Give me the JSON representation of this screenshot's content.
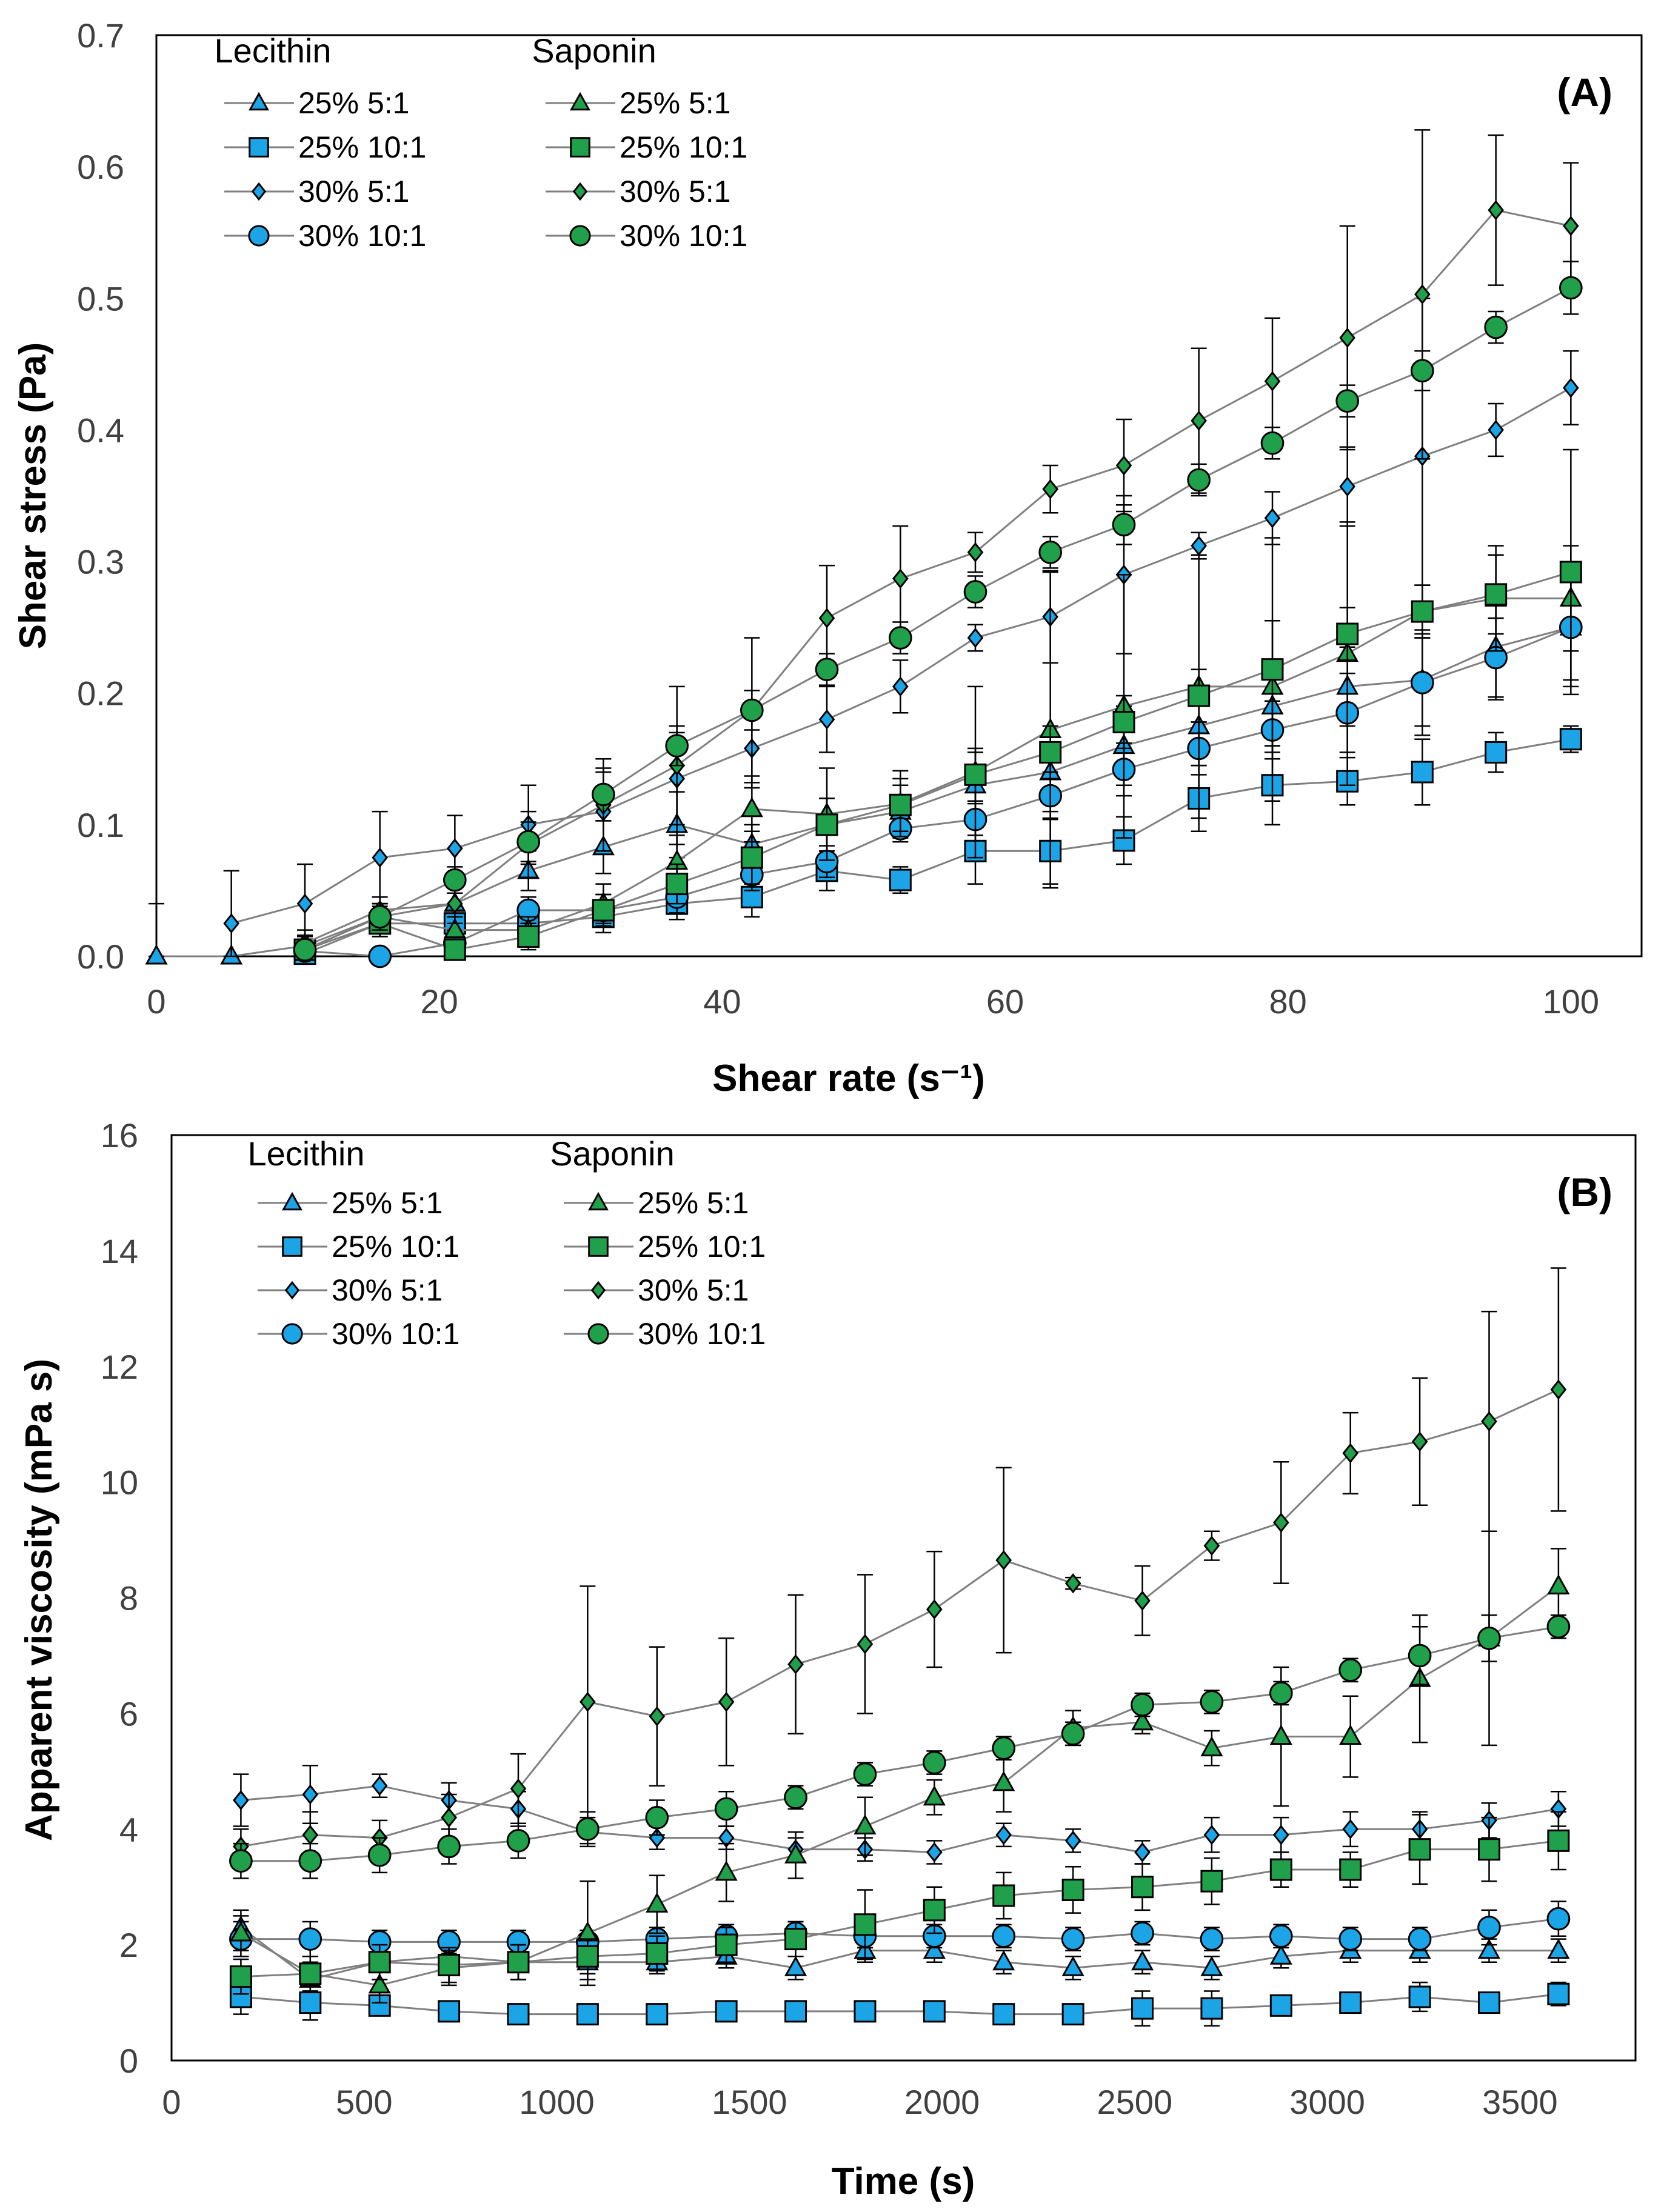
{
  "colors": {
    "lecithin": "#1ca5e6",
    "saponin": "#21a04c",
    "line": "#7f7f7f",
    "frame": "#000000"
  },
  "chart_data": [
    {
      "type": "line",
      "panel_label": "(A)",
      "xlabel": "Shear rate (s⁻¹)",
      "ylabel": "Shear stress (Pa)",
      "xlim": [
        0,
        105
      ],
      "ylim": [
        0,
        0.7
      ],
      "xticks": [
        0,
        20,
        40,
        60,
        80,
        100
      ],
      "xtick_labels": [
        "0",
        "20",
        "40",
        "60",
        "80",
        "100"
      ],
      "yticks": [
        0,
        0.1,
        0.2,
        0.3,
        0.4,
        0.5,
        0.6,
        0.7
      ],
      "ytick_labels": [
        "0.0",
        "0.1",
        "0.2",
        "0.3",
        "0.4",
        "0.5",
        "0.6",
        "0.7"
      ],
      "legend": {
        "placement": "top-left",
        "groups": [
          {
            "title": "Lecithin",
            "entries": [
              "25% 5:1",
              "25% 10:1",
              "30% 5:1",
              "30% 10:1"
            ]
          },
          {
            "title": "Saponin",
            "entries": [
              "25% 5:1",
              "25% 10:1",
              "30% 5:1",
              "30% 10:1"
            ]
          }
        ]
      },
      "x": [
        0,
        5.3,
        10.5,
        15.8,
        21.1,
        26.3,
        31.6,
        36.8,
        42.1,
        47.4,
        52.6,
        57.9,
        63.2,
        68.4,
        73.7,
        78.9,
        84.2,
        89.5,
        94.7,
        100
      ],
      "series": [
        {
          "name": "Lecithin 25% 5:1",
          "group": "lecithin",
          "marker": "triangle",
          "values": [
            0.0,
            0.0,
            0.008,
            0.03,
            0.04,
            0.065,
            0.083,
            0.1,
            0.085,
            0.1,
            0.11,
            0.13,
            0.14,
            0.16,
            0.175,
            0.19,
            0.205,
            0.21,
            0.235,
            0.25
          ],
          "errors": [
            0.04,
            0,
            0.008,
            0.008,
            0.008,
            0.015,
            0.02,
            0.025,
            0.015,
            0.02,
            0.02,
            0.025,
            0.03,
            0.03,
            0.03,
            0.03,
            0.03,
            0.035,
            0.04,
            0.045
          ]
        },
        {
          "name": "Lecithin 25% 10:1",
          "group": "lecithin",
          "marker": "square",
          "values": [
            null,
            null,
            0.002,
            0.025,
            0.025,
            0.025,
            0.03,
            0.04,
            0.045,
            0.065,
            0.058,
            0.08,
            0.08,
            0.088,
            0.12,
            0.13,
            0.133,
            0.14,
            0.155,
            0.165
          ],
          "errors": [
            0,
            0,
            0.005,
            0.01,
            0.01,
            0.01,
            0.012,
            0.012,
            0.015,
            0.015,
            0.01,
            0.025,
            0.025,
            0.018,
            0.025,
            0.03,
            0.018,
            0.025,
            0.015,
            0.01
          ]
        },
        {
          "name": "Lecithin 30% 5:1",
          "group": "lecithin",
          "marker": "diamond",
          "values": [
            null,
            0.025,
            0.04,
            0.075,
            0.082,
            0.1,
            0.11,
            0.135,
            0.158,
            0.18,
            0.205,
            0.242,
            0.258,
            0.29,
            0.312,
            0.333,
            0.357,
            0.38,
            0.4,
            0.432
          ],
          "errors": [
            0,
            0.04,
            0.03,
            0.035,
            0.025,
            0.03,
            0.03,
            0.035,
            0.03,
            0.025,
            0.02,
            0.01,
            0.035,
            0.06,
            0.01,
            0.02,
            0.03,
            0.12,
            0.02,
            0.028
          ]
        },
        {
          "name": "Lecithin 30% 10:1",
          "group": "lecithin",
          "marker": "circle",
          "values": [
            null,
            null,
            0.004,
            0.0,
            0.01,
            0.035,
            0.035,
            0.045,
            0.062,
            0.072,
            0.097,
            0.104,
            0.122,
            0.142,
            0.158,
            0.172,
            0.185,
            0.208,
            0.227,
            0.25
          ],
          "errors": [
            0,
            0,
            0.005,
            0,
            0.01,
            0.01,
            0.012,
            0.012,
            0.012,
            0.012,
            0.01,
            0.012,
            0.018,
            0.02,
            0.02,
            0.022,
            0.03,
            0.04,
            0.03,
            0.04
          ]
        },
        {
          "name": "Saponin 25% 5:1",
          "group": "saponin",
          "marker": "triangle",
          "values": [
            null,
            null,
            0.005,
            0.03,
            0.02,
            0.02,
            0.04,
            0.072,
            0.112,
            0.108,
            0.116,
            0.14,
            0.172,
            0.19,
            0.205,
            0.205,
            0.23,
            0.262,
            0.272,
            0.272
          ],
          "errors": [
            0,
            0,
            0.008,
            0.01,
            0.01,
            0.01,
            0.015,
            0.02,
            0.025,
            0.035,
            0.025,
            0.065,
            0.12,
            0.1,
            0.1,
            0.05,
            0.1,
            0.02,
            0.04,
            0.04
          ]
        },
        {
          "name": "Saponin 25% 10:1",
          "group": "saponin",
          "marker": "square",
          "values": [
            null,
            null,
            0.005,
            0.025,
            0.005,
            0.015,
            0.035,
            0.055,
            0.075,
            0.1,
            0.115,
            0.138,
            0.155,
            0.178,
            0.198,
            0.218,
            0.245,
            0.262,
            0.275,
            0.292
          ],
          "errors": [
            0,
            0,
            0.005,
            0.01,
            0.008,
            0.01,
            0.012,
            0.015,
            0.02,
            0.02,
            0.02,
            0.02,
            0.02,
            0.02,
            0.02,
            0.1,
            0.02,
            0.02,
            0.03,
            0.093
          ]
        },
        {
          "name": "Saponin 30% 5:1",
          "group": "saponin",
          "marker": "diamond",
          "values": [
            null,
            null,
            0.01,
            0.035,
            0.04,
            0.085,
            0.115,
            0.145,
            0.187,
            0.257,
            0.287,
            0.307,
            0.355,
            0.373,
            0.407,
            0.437,
            0.47,
            0.503,
            0.567,
            0.555
          ],
          "errors": [
            0,
            0,
            0.01,
            0.01,
            0.015,
            0.025,
            0.035,
            0.06,
            0.055,
            0.04,
            0.04,
            0.015,
            0.018,
            0.035,
            0.055,
            0.048,
            0.085,
            0.125,
            0.057,
            0.048
          ]
        },
        {
          "name": "Saponin 30% 10:1",
          "group": "saponin",
          "marker": "circle",
          "values": [
            null,
            null,
            0.005,
            0.03,
            0.058,
            0.087,
            0.123,
            0.16,
            0.187,
            0.218,
            0.242,
            0.277,
            0.307,
            0.328,
            0.362,
            0.39,
            0.422,
            0.445,
            0.478,
            0.508
          ],
          "errors": [
            0,
            0,
            0.01,
            0.01,
            0.01,
            0.015,
            0.02,
            0.015,
            0.015,
            0.012,
            0.012,
            0.012,
            0.012,
            0.015,
            0.012,
            0.012,
            0.012,
            0.015,
            0.012,
            0.02
          ]
        }
      ]
    },
    {
      "type": "line",
      "panel_label": "(B)",
      "xlabel": "Time (s)",
      "ylabel": "Apparent viscosity  (mPa s)",
      "xlim": [
        0,
        3800
      ],
      "ylim": [
        0,
        16
      ],
      "xticks": [
        0,
        500,
        1000,
        1500,
        2000,
        2500,
        3000,
        3500
      ],
      "xtick_labels": [
        "0",
        "500",
        "1000",
        "1500",
        "2000",
        "2500",
        "3000",
        "3500"
      ],
      "yticks": [
        0,
        2,
        4,
        6,
        8,
        10,
        12,
        14,
        16
      ],
      "ytick_labels": [
        "0",
        "2",
        "4",
        "6",
        "8",
        "10",
        "12",
        "14",
        "16"
      ],
      "legend": {
        "placement": "top-left",
        "groups": [
          {
            "title": "Lecithin",
            "entries": [
              "25% 5:1",
              "25% 10:1",
              "30% 5:1",
              "30% 10:1"
            ]
          },
          {
            "title": "Saponin",
            "entries": [
              "25% 5:1",
              "25% 10:1",
              "30% 5:1",
              "30% 10:1"
            ]
          }
        ]
      },
      "x": [
        180,
        360,
        540,
        720,
        900,
        1080,
        1260,
        1440,
        1620,
        1800,
        1980,
        2160,
        2340,
        2520,
        2700,
        2880,
        3060,
        3240,
        3420,
        3600
      ],
      "series": [
        {
          "name": "Lecithin 25% 5:1",
          "group": "lecithin",
          "marker": "triangle",
          "values": [
            2.3,
            1.4,
            1.7,
            1.8,
            1.7,
            1.7,
            1.7,
            1.8,
            1.6,
            1.9,
            1.9,
            1.7,
            1.6,
            1.7,
            1.6,
            1.8,
            1.9,
            1.9,
            1.9,
            1.9
          ],
          "errors": [
            0.3,
            0.3,
            0.3,
            0.3,
            0.3,
            0.3,
            0.2,
            0.2,
            0.2,
            0.2,
            0.2,
            0.2,
            0.2,
            0.2,
            0.2,
            0.2,
            0.2,
            0.2,
            0.2,
            0.2
          ]
        },
        {
          "name": "Lecithin 25% 10:1",
          "group": "lecithin",
          "marker": "square",
          "values": [
            1.1,
            1.0,
            0.95,
            0.85,
            0.8,
            0.8,
            0.8,
            0.85,
            0.85,
            0.85,
            0.85,
            0.8,
            0.8,
            0.9,
            0.9,
            0.95,
            1.0,
            1.1,
            1.0,
            1.15
          ],
          "errors": [
            0.3,
            0.3,
            0.15,
            0.1,
            0.1,
            0.1,
            0.1,
            0.1,
            0.1,
            0.1,
            0.1,
            0.1,
            0.1,
            0.3,
            0.3,
            0.1,
            0.1,
            0.25,
            0.1,
            0.2
          ]
        },
        {
          "name": "Lecithin 30% 5:1",
          "group": "lecithin",
          "marker": "diamond",
          "values": [
            4.5,
            4.6,
            4.75,
            4.5,
            4.35,
            3.95,
            3.85,
            3.85,
            3.65,
            3.65,
            3.6,
            3.9,
            3.8,
            3.6,
            3.9,
            3.9,
            4.0,
            4.0,
            4.15,
            4.35
          ],
          "errors": [
            0.45,
            0.5,
            0.2,
            0.3,
            0.3,
            0.2,
            0.2,
            0.2,
            0.2,
            0.2,
            0.2,
            0.2,
            0.2,
            0.2,
            0.3,
            0.3,
            0.3,
            0.3,
            0.3,
            0.3
          ]
        },
        {
          "name": "Lecithin 30% 10:1",
          "group": "lecithin",
          "marker": "circle",
          "values": [
            2.1,
            2.1,
            2.05,
            2.05,
            2.05,
            2.05,
            2.1,
            2.15,
            2.2,
            2.15,
            2.15,
            2.15,
            2.1,
            2.2,
            2.1,
            2.15,
            2.1,
            2.1,
            2.3,
            2.45
          ],
          "errors": [
            0.3,
            0.3,
            0.2,
            0.2,
            0.2,
            0.2,
            0.2,
            0.2,
            0.2,
            0.2,
            0.2,
            0.2,
            0.2,
            0.2,
            0.2,
            0.2,
            0.2,
            0.2,
            0.3,
            0.3
          ]
        },
        {
          "name": "Saponin 25% 5:1",
          "group": "saponin",
          "marker": "triangle",
          "values": [
            2.2,
            1.5,
            1.3,
            1.6,
            1.7,
            2.2,
            2.7,
            3.25,
            3.55,
            4.05,
            4.55,
            4.8,
            5.75,
            5.85,
            5.4,
            5.6,
            5.6,
            6.6,
            7.3,
            8.2
          ],
          "errors": [
            0.3,
            0.3,
            0.3,
            0.3,
            0.3,
            0.9,
            0.5,
            0.5,
            0.4,
            0.5,
            0.3,
            0.5,
            0.3,
            0.2,
            0.3,
            1.2,
            0.7,
            1.1,
            1.85,
            0.65
          ]
        },
        {
          "name": "Saponin 25% 10:1",
          "group": "saponin",
          "marker": "square",
          "values": [
            1.45,
            1.5,
            1.7,
            1.65,
            1.7,
            1.8,
            1.85,
            2.0,
            2.1,
            2.35,
            2.6,
            2.85,
            2.95,
            3.0,
            3.1,
            3.3,
            3.3,
            3.65,
            3.65,
            3.8
          ],
          "errors": [
            0.3,
            0.3,
            0.3,
            0.3,
            0.3,
            0.3,
            0.3,
            0.3,
            0.3,
            0.6,
            0.4,
            0.4,
            0.4,
            0.4,
            0.4,
            0.3,
            0.3,
            0.6,
            0.55,
            0.5
          ]
        },
        {
          "name": "Saponin 30% 5:1",
          "group": "saponin",
          "marker": "diamond",
          "values": [
            3.7,
            3.9,
            3.85,
            4.2,
            4.7,
            6.2,
            5.95,
            6.2,
            6.85,
            7.2,
            7.8,
            8.65,
            8.25,
            7.95,
            8.9,
            9.3,
            10.5,
            10.7,
            11.05,
            11.6
          ],
          "errors": [
            0.3,
            0.4,
            0.3,
            0.4,
            0.6,
            2.0,
            1.2,
            1.1,
            1.2,
            1.2,
            1.0,
            1.6,
            0.1,
            0.6,
            0.25,
            1.05,
            0.7,
            1.1,
            1.9,
            2.1
          ]
        },
        {
          "name": "Saponin 30% 10:1",
          "group": "saponin",
          "marker": "circle",
          "values": [
            3.45,
            3.45,
            3.55,
            3.7,
            3.8,
            4.0,
            4.2,
            4.35,
            4.55,
            4.95,
            5.15,
            5.4,
            5.65,
            6.15,
            6.2,
            6.35,
            6.75,
            7.0,
            7.3,
            7.5
          ],
          "errors": [
            0.3,
            0.3,
            0.3,
            0.3,
            0.3,
            0.3,
            0.3,
            0.3,
            0.2,
            0.2,
            0.2,
            0.2,
            0.2,
            0.2,
            0.2,
            0.2,
            0.2,
            0.5,
            0.4,
            0.2
          ]
        }
      ]
    }
  ]
}
